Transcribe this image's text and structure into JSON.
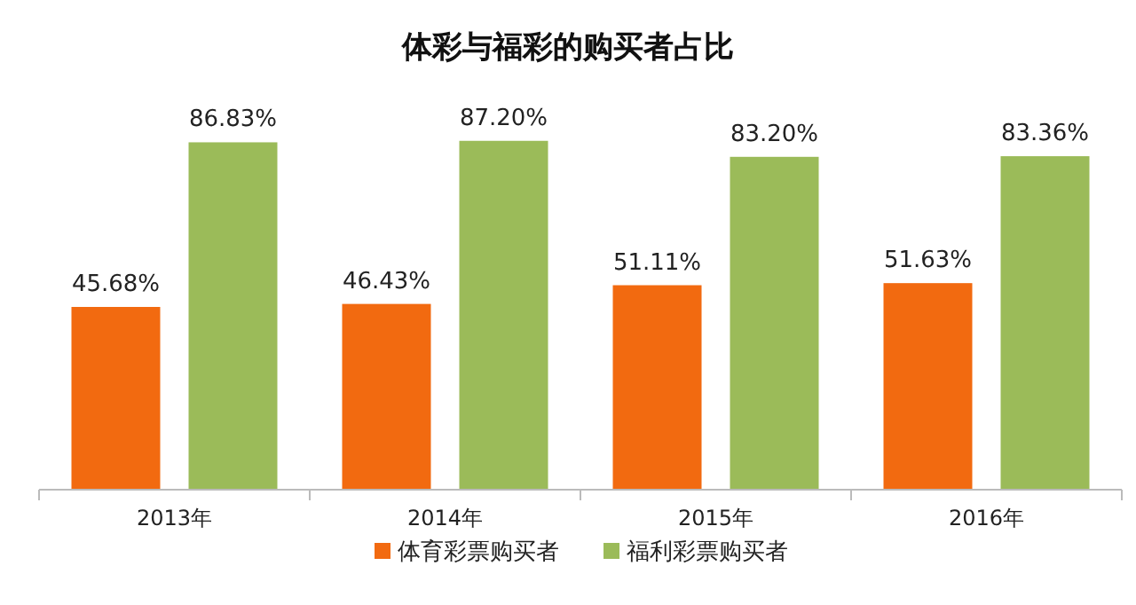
{
  "chart_data": {
    "type": "bar",
    "title": "体彩与福彩的购买者占比",
    "categories": [
      "2013年",
      "2014年",
      "2015年",
      "2016年"
    ],
    "series": [
      {
        "name": "体育彩票购买者",
        "color": "#f26a10",
        "values": [
          45.68,
          46.43,
          51.11,
          51.63
        ],
        "value_labels": [
          "45.68%",
          "46.43%",
          "51.11%",
          "51.63%"
        ]
      },
      {
        "name": "福利彩票购买者",
        "color": "#9bbb59",
        "values": [
          86.83,
          87.2,
          83.2,
          83.36
        ],
        "value_labels": [
          "86.83%",
          "87.20%",
          "83.20%",
          "83.36%"
        ]
      }
    ],
    "legend": "bottom"
  }
}
